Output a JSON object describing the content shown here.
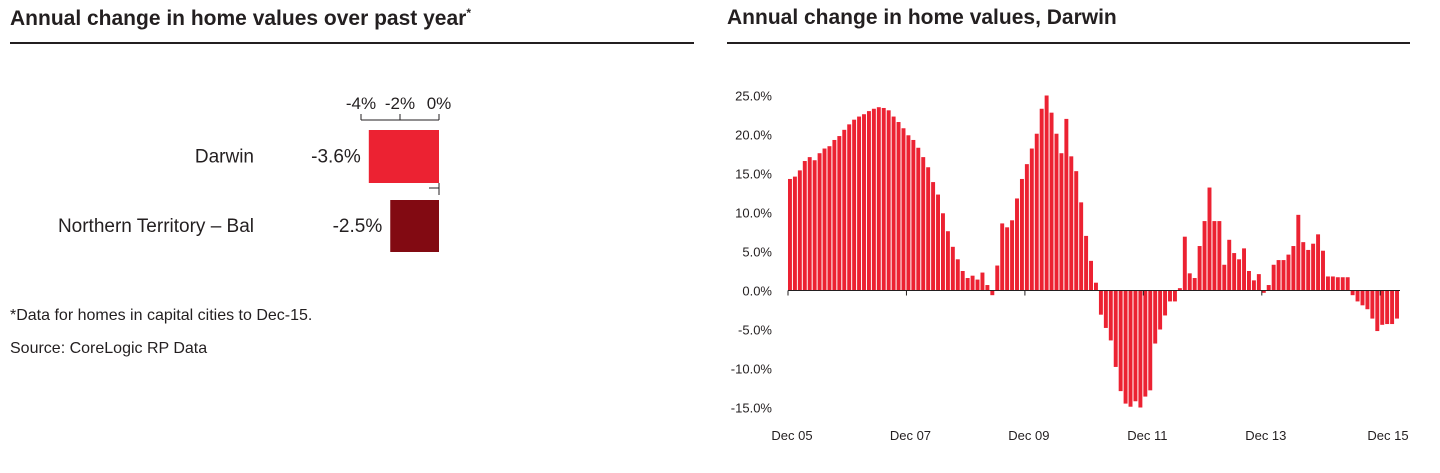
{
  "left_panel": {
    "title": "Annual change in home values over past year",
    "title_marker": "*",
    "footnote": "*Data for homes in capital cities to Dec-15.",
    "source": "Source: CoreLogic RP Data"
  },
  "right_panel": {
    "title": "Annual change in home values, Darwin"
  },
  "chart_data": [
    {
      "type": "bar",
      "orientation": "horizontal",
      "title": "Annual change in home values over past year",
      "categories": [
        "Darwin",
        "Northern Territory – Bal"
      ],
      "values": [
        -3.6,
        -2.5
      ],
      "value_labels": [
        "-3.6%",
        "-2.5%"
      ],
      "bar_colors": [
        "#ec2232",
        "#820a12"
      ],
      "xaxis_ticks": [
        "-4%",
        "-2%",
        "0%"
      ],
      "xaxis_tick_values": [
        -4,
        -2,
        0
      ],
      "xlim": [
        -4,
        0
      ],
      "axis_position": "top",
      "grid": false
    },
    {
      "type": "bar",
      "title": "Annual change in home values, Darwin",
      "bar_color": "#ec2232",
      "x_ticks": [
        "Dec 05",
        "Dec 07",
        "Dec 09",
        "Dec 11",
        "Dec 13",
        "Dec 15"
      ],
      "x_tick_indices": [
        0,
        24,
        48,
        72,
        96,
        120
      ],
      "y_ticks": [
        "25.0%",
        "20.0%",
        "15.0%",
        "10.0%",
        "5.0%",
        "0.0%",
        "-5.0%",
        "-10.0%",
        "-15.0%"
      ],
      "y_tick_values": [
        25,
        20,
        15,
        10,
        5,
        0,
        -5,
        -10,
        -15
      ],
      "ylim": [
        -15,
        25
      ],
      "grid": false,
      "values": [
        14.3,
        14.6,
        15.4,
        16.6,
        17.1,
        16.7,
        17.6,
        18.2,
        18.5,
        19.3,
        19.8,
        20.6,
        21.3,
        21.9,
        22.3,
        22.6,
        23.0,
        23.3,
        23.5,
        23.4,
        23.1,
        22.3,
        21.6,
        20.8,
        19.9,
        19.3,
        18.3,
        17.1,
        15.8,
        13.9,
        12.3,
        9.9,
        7.6,
        5.6,
        4.0,
        2.5,
        1.6,
        1.9,
        1.4,
        2.3,
        0.7,
        -0.6,
        3.2,
        8.6,
        8.1,
        9.0,
        11.8,
        14.3,
        16.2,
        18.2,
        20.1,
        23.3,
        25.0,
        22.8,
        20.1,
        17.6,
        22.0,
        17.2,
        15.3,
        11.3,
        7.0,
        3.8,
        1.0,
        -3.1,
        -4.8,
        -6.4,
        -9.8,
        -12.9,
        -14.5,
        -14.9,
        -14.2,
        -15.0,
        -13.6,
        -12.8,
        -6.8,
        -5.0,
        -3.2,
        -1.4,
        -1.4,
        0.3,
        6.9,
        2.2,
        1.6,
        5.7,
        8.9,
        13.2,
        8.9,
        8.9,
        3.3,
        6.5,
        4.8,
        4.0,
        5.4,
        2.5,
        1.3,
        2.1,
        -0.3,
        0.7,
        3.3,
        3.9,
        3.9,
        4.6,
        5.7,
        9.7,
        6.2,
        5.2,
        6.0,
        7.2,
        5.1,
        1.8,
        1.8,
        1.7,
        1.7,
        1.7,
        -0.6,
        -1.4,
        -1.9,
        -2.4,
        -3.6,
        -5.2,
        -4.4,
        -4.3,
        -4.3,
        -3.6
      ]
    }
  ]
}
